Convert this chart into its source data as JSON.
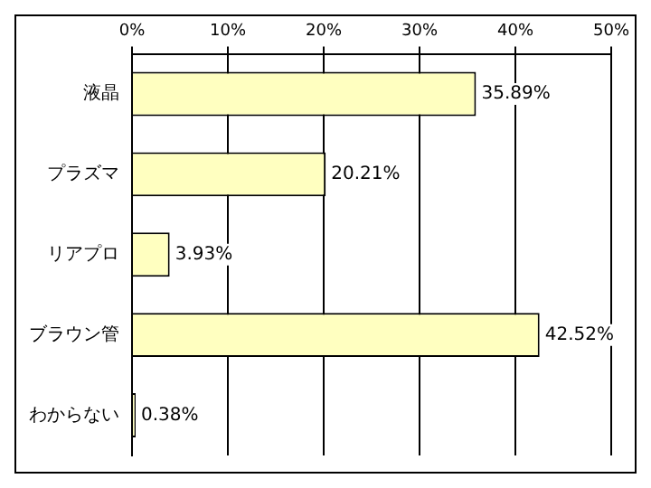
{
  "chart_data": {
    "type": "bar",
    "orientation": "horizontal",
    "categories": [
      "液晶",
      "プラズマ",
      "リアプロ",
      "ブラウン管",
      "わからない"
    ],
    "values": [
      35.89,
      20.21,
      3.93,
      42.52,
      0.38
    ],
    "value_labels": [
      "35.89%",
      "20.21%",
      "3.93%",
      "42.52%",
      "0.38%"
    ],
    "color": "#ffffc0",
    "xlim": [
      0,
      50
    ],
    "xticks": [
      {
        "value": 0,
        "label": "0%"
      },
      {
        "value": 10,
        "label": "10%"
      },
      {
        "value": 20,
        "label": "20%"
      },
      {
        "value": 30,
        "label": "30%"
      },
      {
        "value": 40,
        "label": "40%"
      },
      {
        "value": 50,
        "label": "50%"
      }
    ],
    "grid": "x",
    "legend": false
  }
}
